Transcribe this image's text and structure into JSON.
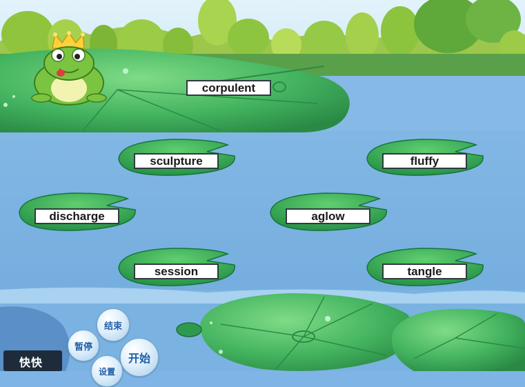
{
  "target_word": "corpulent",
  "options": [
    "sculpture",
    "fluffy",
    "discharge",
    "aglow",
    "session",
    "tangle"
  ],
  "controls": {
    "end": "结束",
    "pause": "暂停",
    "start": "开始",
    "settings": "设置"
  },
  "logo_text": "快快",
  "colors": {
    "sky": "#c9e7f6",
    "water": "#82b5e3",
    "pad_green": "#3aa85a",
    "pad_light": "#6fd079",
    "frog": "#7bc441"
  }
}
